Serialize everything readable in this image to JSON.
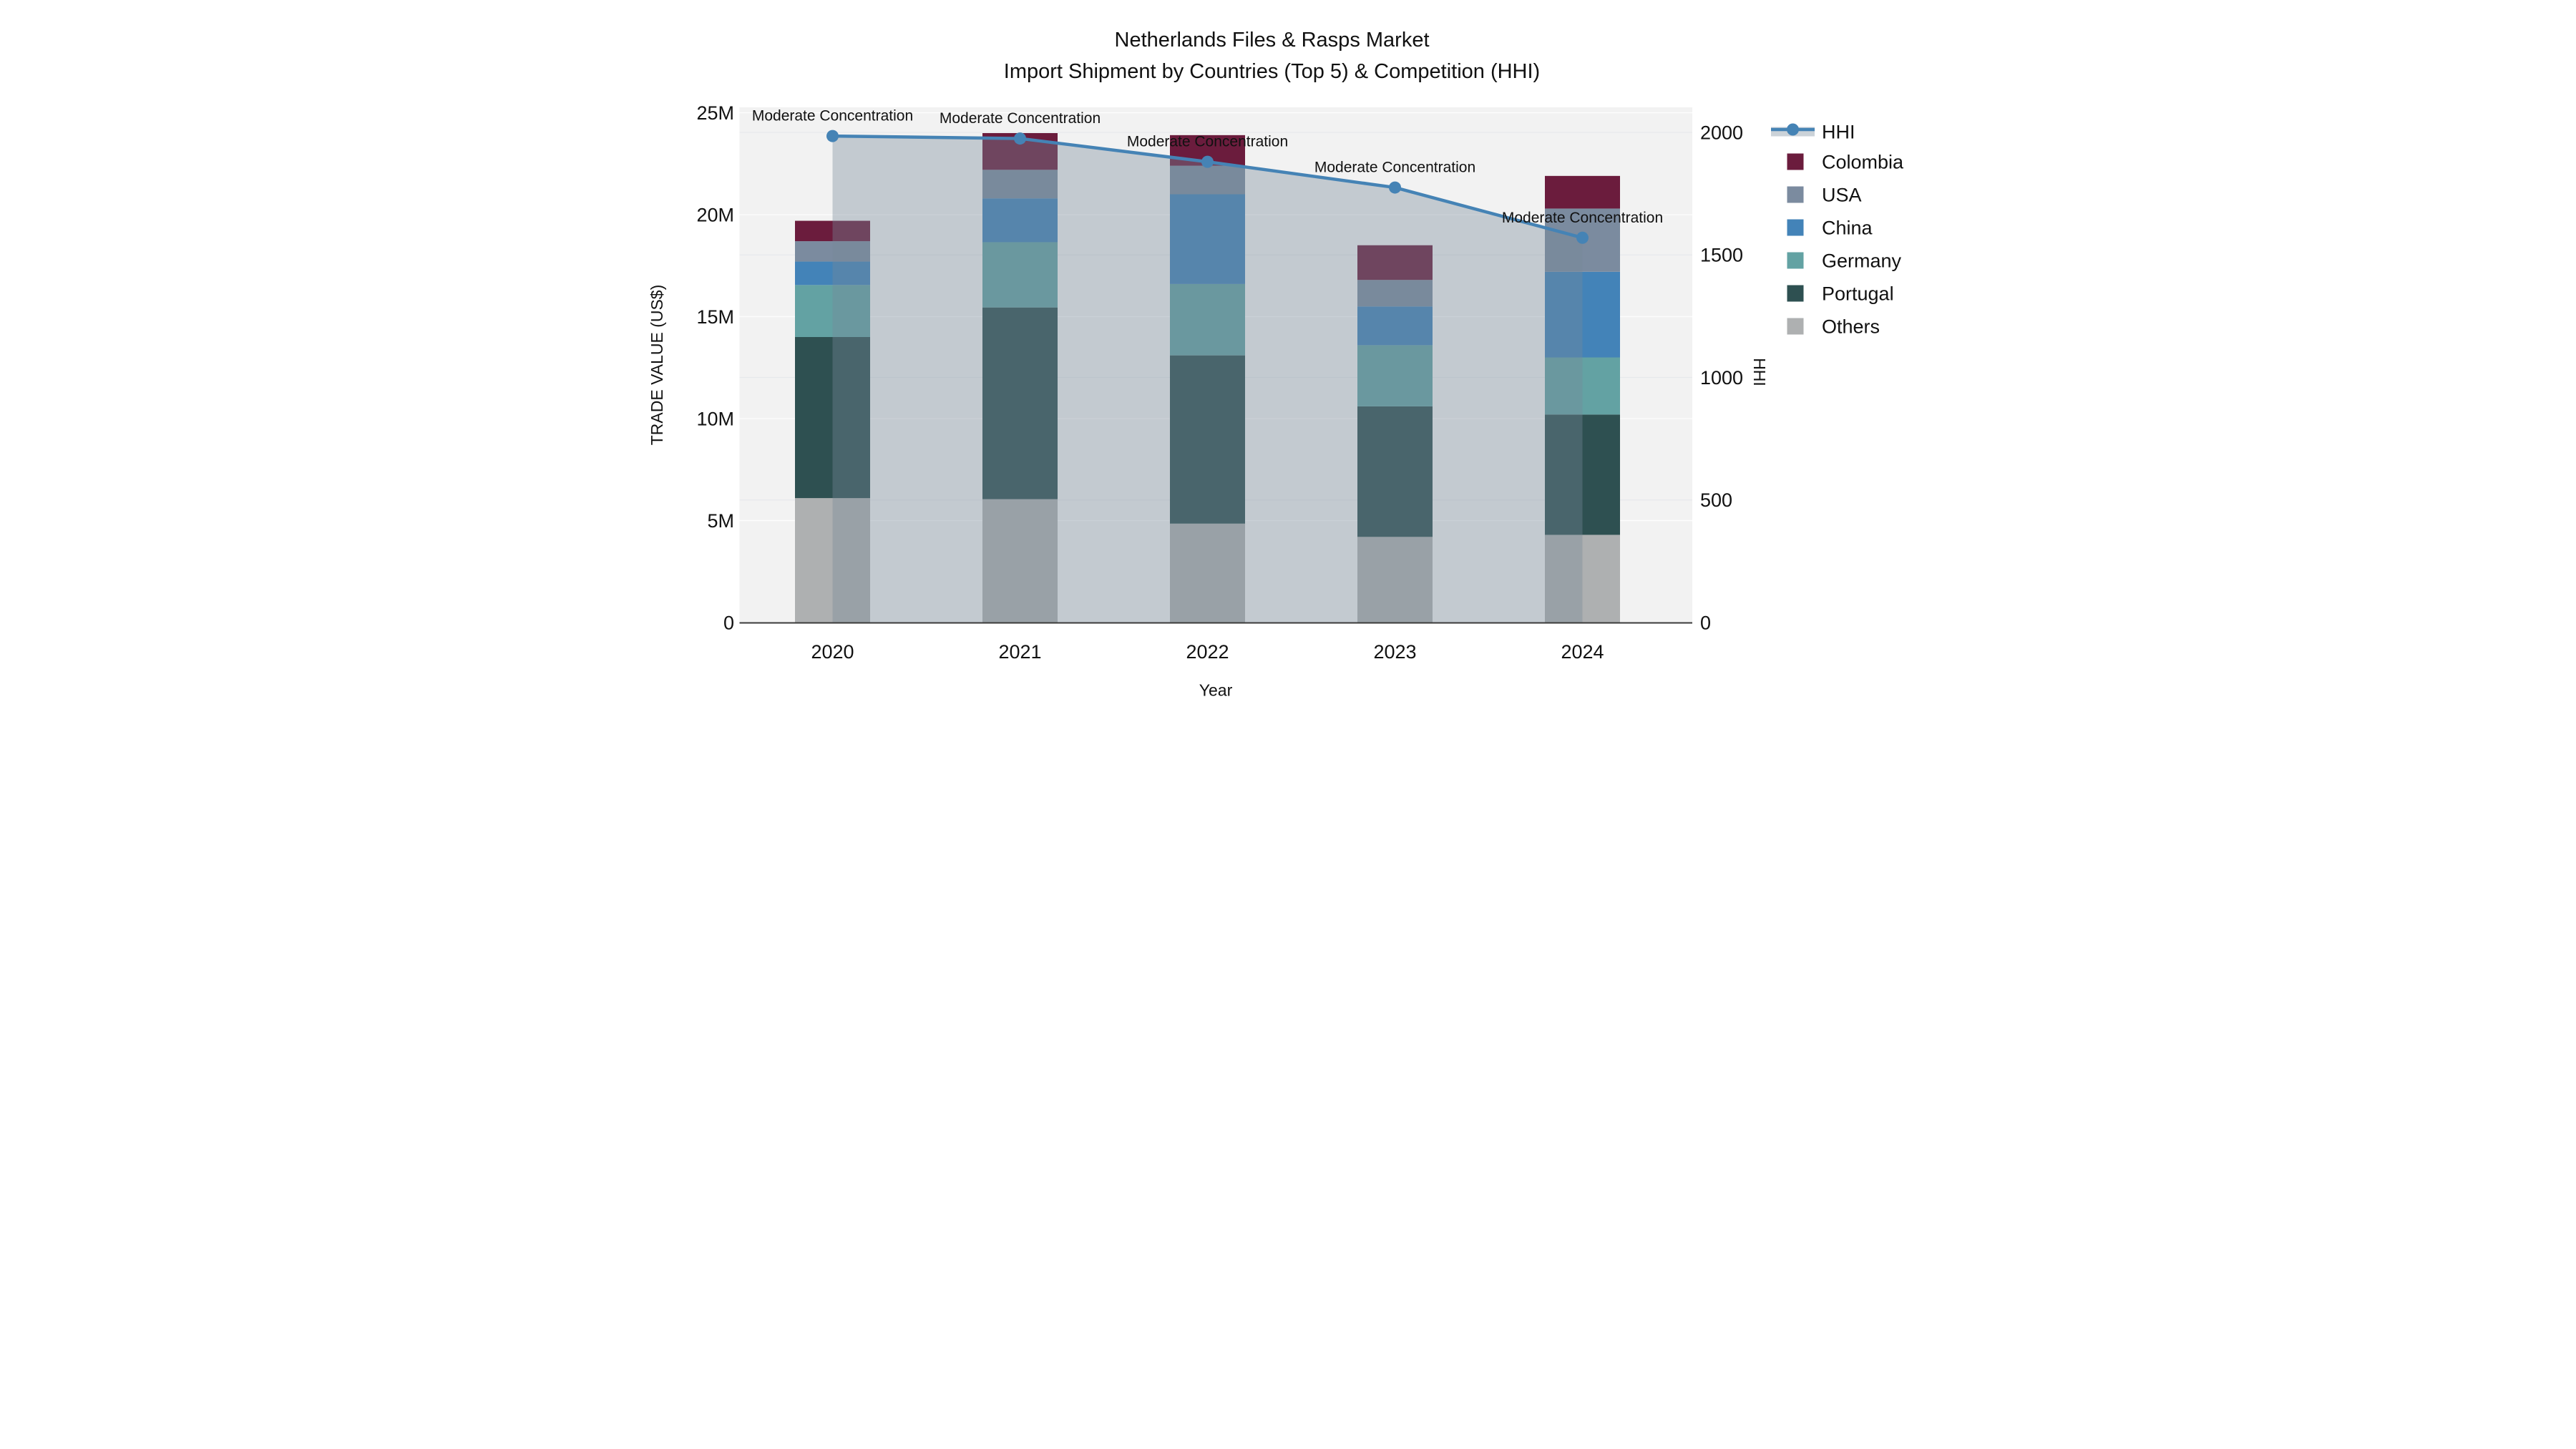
{
  "title": {
    "line1": "Netherlands Files & Rasps Market",
    "line2": "Import Shipment by Countries (Top 5) & Competition (HHI)"
  },
  "annotation_label": "Moderate Concentration",
  "legend": {
    "items": [
      {
        "label": "HHI",
        "type": "line",
        "color": "#4583b5"
      },
      {
        "label": "Colombia",
        "type": "square",
        "color": "#6b1c3d"
      },
      {
        "label": "USA",
        "type": "square",
        "color": "#7b8b9f"
      },
      {
        "label": "China",
        "type": "square",
        "color": "#4383b8"
      },
      {
        "label": "Germany",
        "type": "square",
        "color": "#63a2a3"
      },
      {
        "label": "Portugal",
        "type": "square",
        "color": "#2e5051"
      },
      {
        "label": "Others",
        "type": "square",
        "color": "#aeb0b1"
      }
    ]
  },
  "chart_data": {
    "type": "bar",
    "subtype": "stacked-bars-with-line-overlay",
    "title": "Netherlands Files & Rasps Market — Import Shipment by Countries (Top 5) & Competition (HHI)",
    "xlabel": "Year",
    "ylabel_left": "TRADE VALUE (US$)",
    "ylabel_right": "HHI",
    "unit_left": "million US$",
    "categories": [
      "2020",
      "2021",
      "2022",
      "2023",
      "2024"
    ],
    "yaxis_left": {
      "ticks": [
        "0",
        "5M",
        "10M",
        "15M",
        "20M",
        "25M"
      ],
      "tick_values": [
        0,
        5,
        10,
        15,
        20,
        25
      ],
      "range": [
        0,
        25
      ]
    },
    "yaxis_right": {
      "ticks": [
        "0",
        "500",
        "1000",
        "1500",
        "2000"
      ],
      "tick_values": [
        0,
        500,
        1000,
        1500,
        2000
      ],
      "range": [
        0,
        2025
      ]
    },
    "series": [
      {
        "name": "Others",
        "color": "#aeb0b1",
        "values": [
          6.1,
          6.05,
          4.85,
          4.2,
          4.3
        ]
      },
      {
        "name": "Portugal",
        "color": "#2e5051",
        "values": [
          7.9,
          9.4,
          8.25,
          6.4,
          5.9
        ]
      },
      {
        "name": "Germany",
        "color": "#63a2a3",
        "values": [
          2.55,
          3.2,
          3.5,
          3.0,
          2.8
        ]
      },
      {
        "name": "China",
        "color": "#4383b8",
        "values": [
          1.15,
          2.15,
          4.4,
          1.9,
          4.2
        ]
      },
      {
        "name": "USA",
        "color": "#7b8b9f",
        "values": [
          1.0,
          1.4,
          1.4,
          1.3,
          3.1
        ]
      },
      {
        "name": "Colombia",
        "color": "#6b1c3d",
        "values": [
          1.0,
          1.8,
          1.5,
          1.7,
          1.6
        ]
      }
    ],
    "bar_totals": [
      19.7,
      24.0,
      23.9,
      18.5,
      21.9
    ],
    "line_series": {
      "name": "HHI",
      "color": "#4583b5",
      "area_fill": "rgba(119,136,153,0.38)",
      "values": [
        1985,
        1975,
        1880,
        1775,
        1570
      ]
    },
    "annotations": [
      "Moderate Concentration",
      "Moderate Concentration",
      "Moderate Concentration",
      "Moderate Concentration",
      "Moderate Concentration"
    ],
    "colors": {
      "plot_background": "#f2f2f2",
      "grid_major": "#fdfdfd",
      "grid_secondary": "#e7e9ec",
      "axis_line": "#3b3b3b",
      "text": "#111111"
    },
    "legend_position": "right",
    "grid": true
  }
}
